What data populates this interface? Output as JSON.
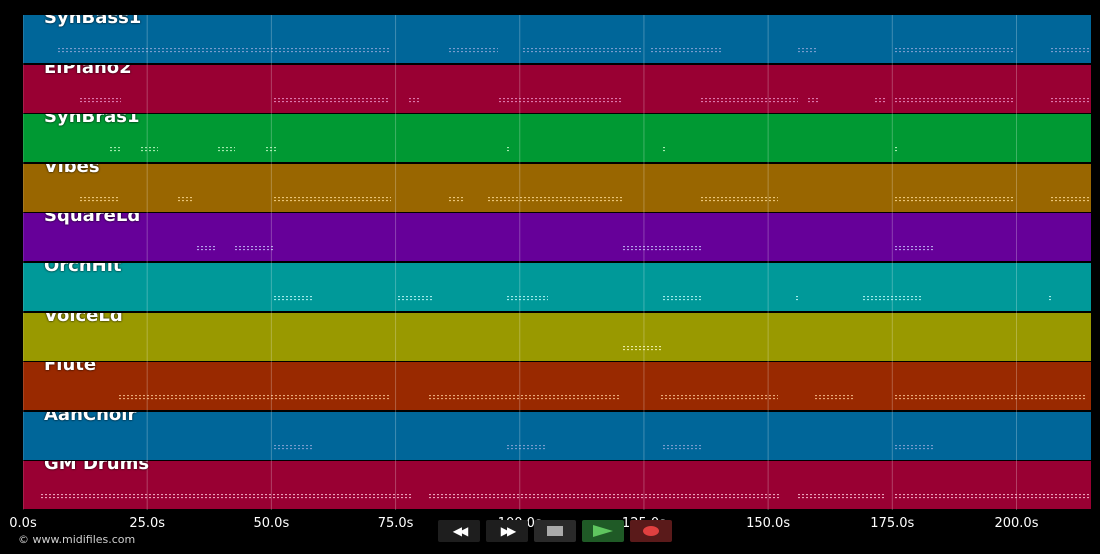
{
  "tracks": [
    {
      "name": "SynBass1",
      "color": "#006699",
      "notes": [
        [
          35,
          225
        ],
        [
          228,
          368
        ],
        [
          426,
          475
        ],
        [
          500,
          618
        ],
        [
          628,
          700
        ],
        [
          775,
          795
        ],
        [
          872,
          990
        ],
        [
          1028,
          1068
        ]
      ],
      "note_color": "#9ad"
    },
    {
      "name": "ElPiano2",
      "color": "#990033",
      "notes": [
        [
          57,
          98
        ],
        [
          251,
          366
        ],
        [
          386,
          396
        ],
        [
          476,
          598
        ],
        [
          678,
          775
        ],
        [
          785,
          795
        ],
        [
          852,
          862
        ],
        [
          872,
          990
        ],
        [
          1028,
          1068
        ]
      ],
      "note_color": "#e9c"
    },
    {
      "name": "SynBras1",
      "color": "#009933",
      "notes": [
        [
          87,
          98
        ],
        [
          118,
          135
        ],
        [
          195,
          212
        ],
        [
          243,
          253
        ],
        [
          484,
          486
        ],
        [
          640,
          642
        ],
        [
          872,
          874
        ]
      ],
      "note_color": "#cfc"
    },
    {
      "name": "Vibes",
      "color": "#996600",
      "notes": [
        [
          57,
          96
        ],
        [
          155,
          170
        ],
        [
          251,
          368
        ],
        [
          426,
          441
        ],
        [
          465,
          600
        ],
        [
          678,
          755
        ],
        [
          872,
          990
        ],
        [
          1028,
          1068
        ]
      ],
      "note_color": "#fd9"
    },
    {
      "name": "SquareLd",
      "color": "#660099",
      "notes": [
        [
          174,
          193
        ],
        [
          212,
          250
        ],
        [
          600,
          678
        ],
        [
          872,
          910
        ]
      ],
      "note_color": "#ccf"
    },
    {
      "name": "OrchHit",
      "color": "#009999",
      "notes": [
        [
          251,
          290
        ],
        [
          375,
          410
        ],
        [
          484,
          525
        ],
        [
          640,
          680
        ],
        [
          773,
          776
        ],
        [
          840,
          900
        ],
        [
          1026,
          1028
        ]
      ],
      "note_color": "#cff"
    },
    {
      "name": "VoiceLd",
      "color": "#999900",
      "notes": [
        [
          600,
          638
        ]
      ],
      "note_color": "#ffc"
    },
    {
      "name": "Flute",
      "color": "#992900",
      "notes": [
        [
          96,
          368
        ],
        [
          406,
          598
        ],
        [
          638,
          755
        ],
        [
          792,
          830
        ],
        [
          872,
          1062
        ]
      ],
      "note_color": "#fc9"
    },
    {
      "name": "AahChoir",
      "color": "#006699",
      "notes": [
        [
          251,
          290
        ],
        [
          484,
          522
        ],
        [
          640,
          678
        ],
        [
          872,
          910
        ]
      ],
      "note_color": "#9ad"
    },
    {
      "name": "GM Drums",
      "color": "#990033",
      "notes": [
        [
          18,
          388
        ],
        [
          406,
          756
        ],
        [
          775,
          862
        ],
        [
          872,
          1068
        ]
      ],
      "note_color": "#fcd"
    }
  ],
  "axis": {
    "ticks": [
      "0.0s",
      "25.0s",
      "50.0s",
      "75.0s",
      "100.0s",
      "125.0s",
      "150.0s",
      "175.0s",
      "200.0s"
    ],
    "max_seconds": 215
  },
  "copyright": "© www.midifiles.com",
  "transport": {
    "rewind_icon": "◀◀",
    "forward_icon": "▶▶",
    "stop_icon": "stop-icon",
    "play_icon": "play-icon",
    "record_icon": "record-icon"
  }
}
